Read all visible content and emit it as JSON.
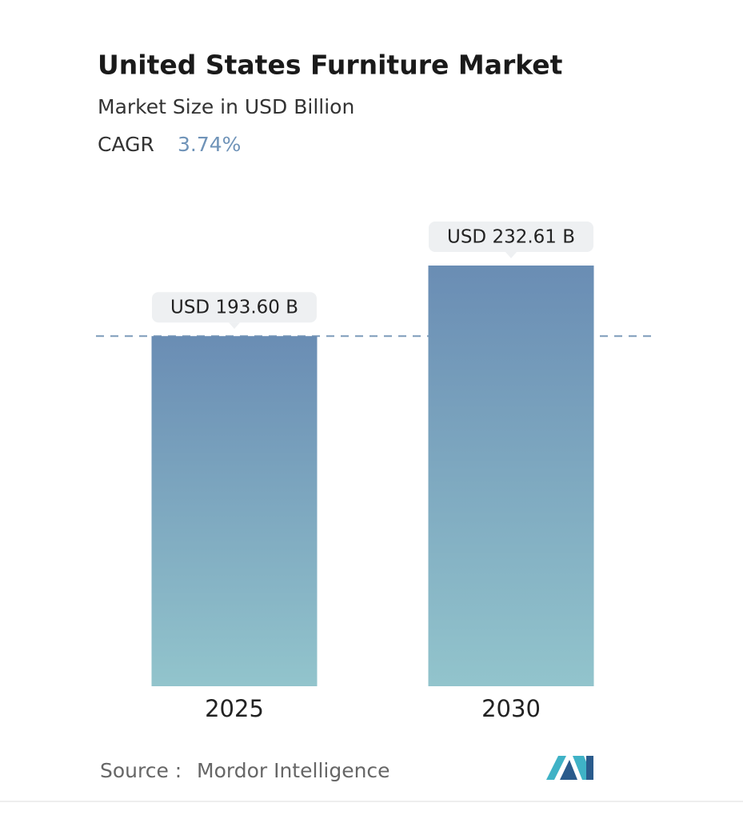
{
  "chart_data": {
    "type": "bar",
    "title": "United States Furniture Market",
    "subtitle": "Market Size in USD Billion",
    "cagr_label": "CAGR",
    "cagr_value": "3.74%",
    "categories": [
      "2025",
      "2030"
    ],
    "values": [
      193.6,
      232.61
    ],
    "value_labels": [
      "USD 193.60 B",
      "USD 232.61 B"
    ],
    "colors": [
      "#6a8db4",
      "#92c4cc"
    ],
    "source_label": "Source :",
    "source": "Mordor Intelligence"
  }
}
